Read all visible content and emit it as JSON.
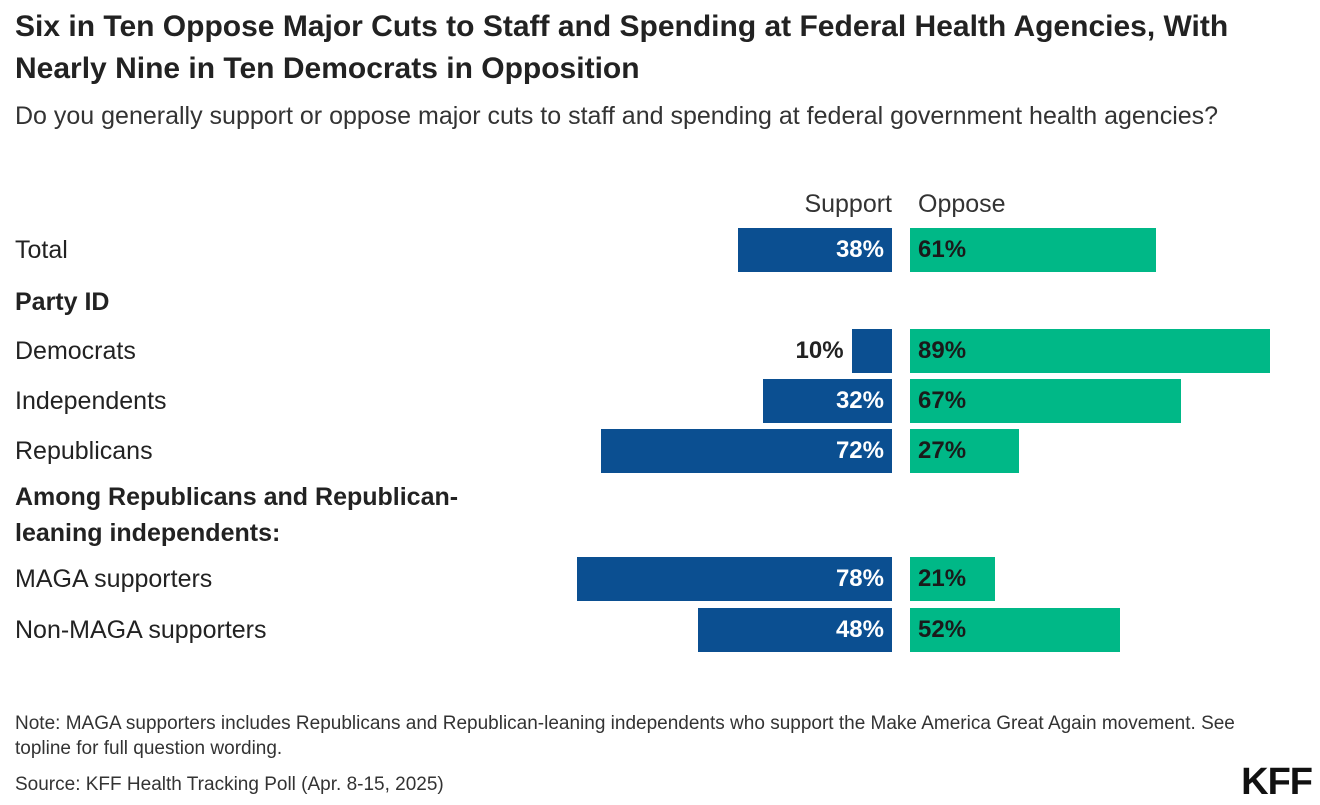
{
  "chart_data": {
    "type": "bar",
    "orientation": "horizontal-diverging",
    "title": "Six in Ten Oppose Major Cuts to Staff and Spending at Federal Health Agencies, With Nearly Nine in Ten Democrats in Opposition",
    "subtitle": "Do you generally support or oppose major cuts to staff and spending at federal government health agencies?",
    "column_headers": {
      "support": "Support",
      "oppose": "Oppose"
    },
    "unit": "%",
    "rows": [
      {
        "kind": "data",
        "label": "Total",
        "support": 38,
        "oppose": 61,
        "support_label": "38%",
        "oppose_label": "61%"
      },
      {
        "kind": "section",
        "label": "Party ID"
      },
      {
        "kind": "data",
        "label": "Democrats",
        "support": 10,
        "oppose": 89,
        "support_label": "10%",
        "oppose_label": "89%"
      },
      {
        "kind": "data",
        "label": "Independents",
        "support": 32,
        "oppose": 67,
        "support_label": "32%",
        "oppose_label": "67%"
      },
      {
        "kind": "data",
        "label": "Republicans",
        "support": 72,
        "oppose": 27,
        "support_label": "72%",
        "oppose_label": "27%"
      },
      {
        "kind": "section",
        "label": "Among Republicans and Republican-leaning independents:"
      },
      {
        "kind": "data",
        "label": "MAGA supporters",
        "support": 78,
        "oppose": 21,
        "support_label": "78%",
        "oppose_label": "21%"
      },
      {
        "kind": "data",
        "label": "Non-MAGA supporters",
        "support": 48,
        "oppose": 52,
        "support_label": "48%",
        "oppose_label": "52%"
      }
    ],
    "series_colors": {
      "support": "#0b4f91",
      "oppose": "#00b887"
    }
  },
  "footer": {
    "note": "Note: MAGA supporters includes Republicans and Republican-leaning independents who support the Make America Great Again movement. See topline for full question wording.",
    "source": "Source: KFF Health Tracking Poll (Apr. 8-15, 2025)",
    "logo": "KFF"
  }
}
